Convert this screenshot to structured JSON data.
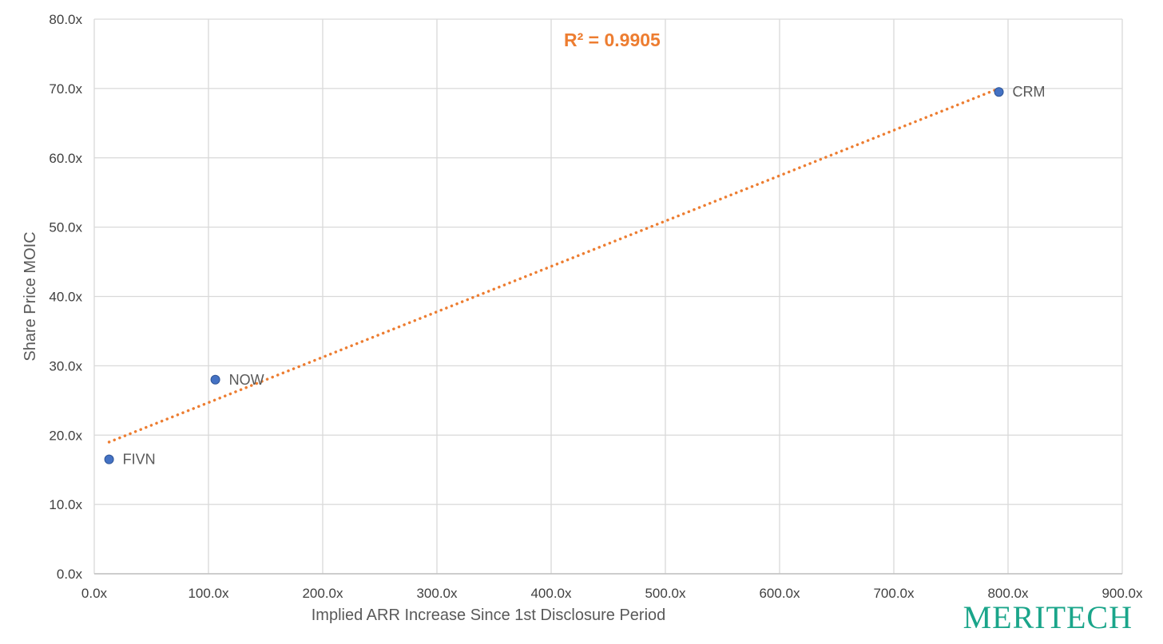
{
  "chart_data": {
    "type": "scatter",
    "title": "",
    "xlabel": "Implied ARR Increase Since 1st Disclosure Period",
    "ylabel": "Share Price MOIC",
    "xlim": [
      0,
      900
    ],
    "ylim": [
      0,
      80
    ],
    "x_ticks": [
      "0.0x",
      "100.0x",
      "200.0x",
      "300.0x",
      "400.0x",
      "500.0x",
      "600.0x",
      "700.0x",
      "800.0x",
      "900.0x"
    ],
    "y_ticks": [
      "0.0x",
      "10.0x",
      "20.0x",
      "30.0x",
      "40.0x",
      "50.0x",
      "60.0x",
      "70.0x",
      "80.0x"
    ],
    "grid": true,
    "points": [
      {
        "label": "FIVN",
        "x": 13,
        "y": 16.5
      },
      {
        "label": "NOW",
        "x": 106,
        "y": 28.0
      },
      {
        "label": "CRM",
        "x": 792,
        "y": 69.5
      }
    ],
    "trendline": {
      "type": "linear",
      "x_start": 13,
      "y_start": 19.0,
      "x_end": 792,
      "y_end": 70.0,
      "style": "dotted"
    },
    "annotation": "R² = 0.9905",
    "colors": {
      "points": "#4472c4",
      "trendline": "#ed7d31",
      "grid": "#d9d9d9",
      "annotation": "#ed7d31"
    }
  },
  "brand": {
    "text": "MERITECH",
    "color": "#1aa58a"
  }
}
